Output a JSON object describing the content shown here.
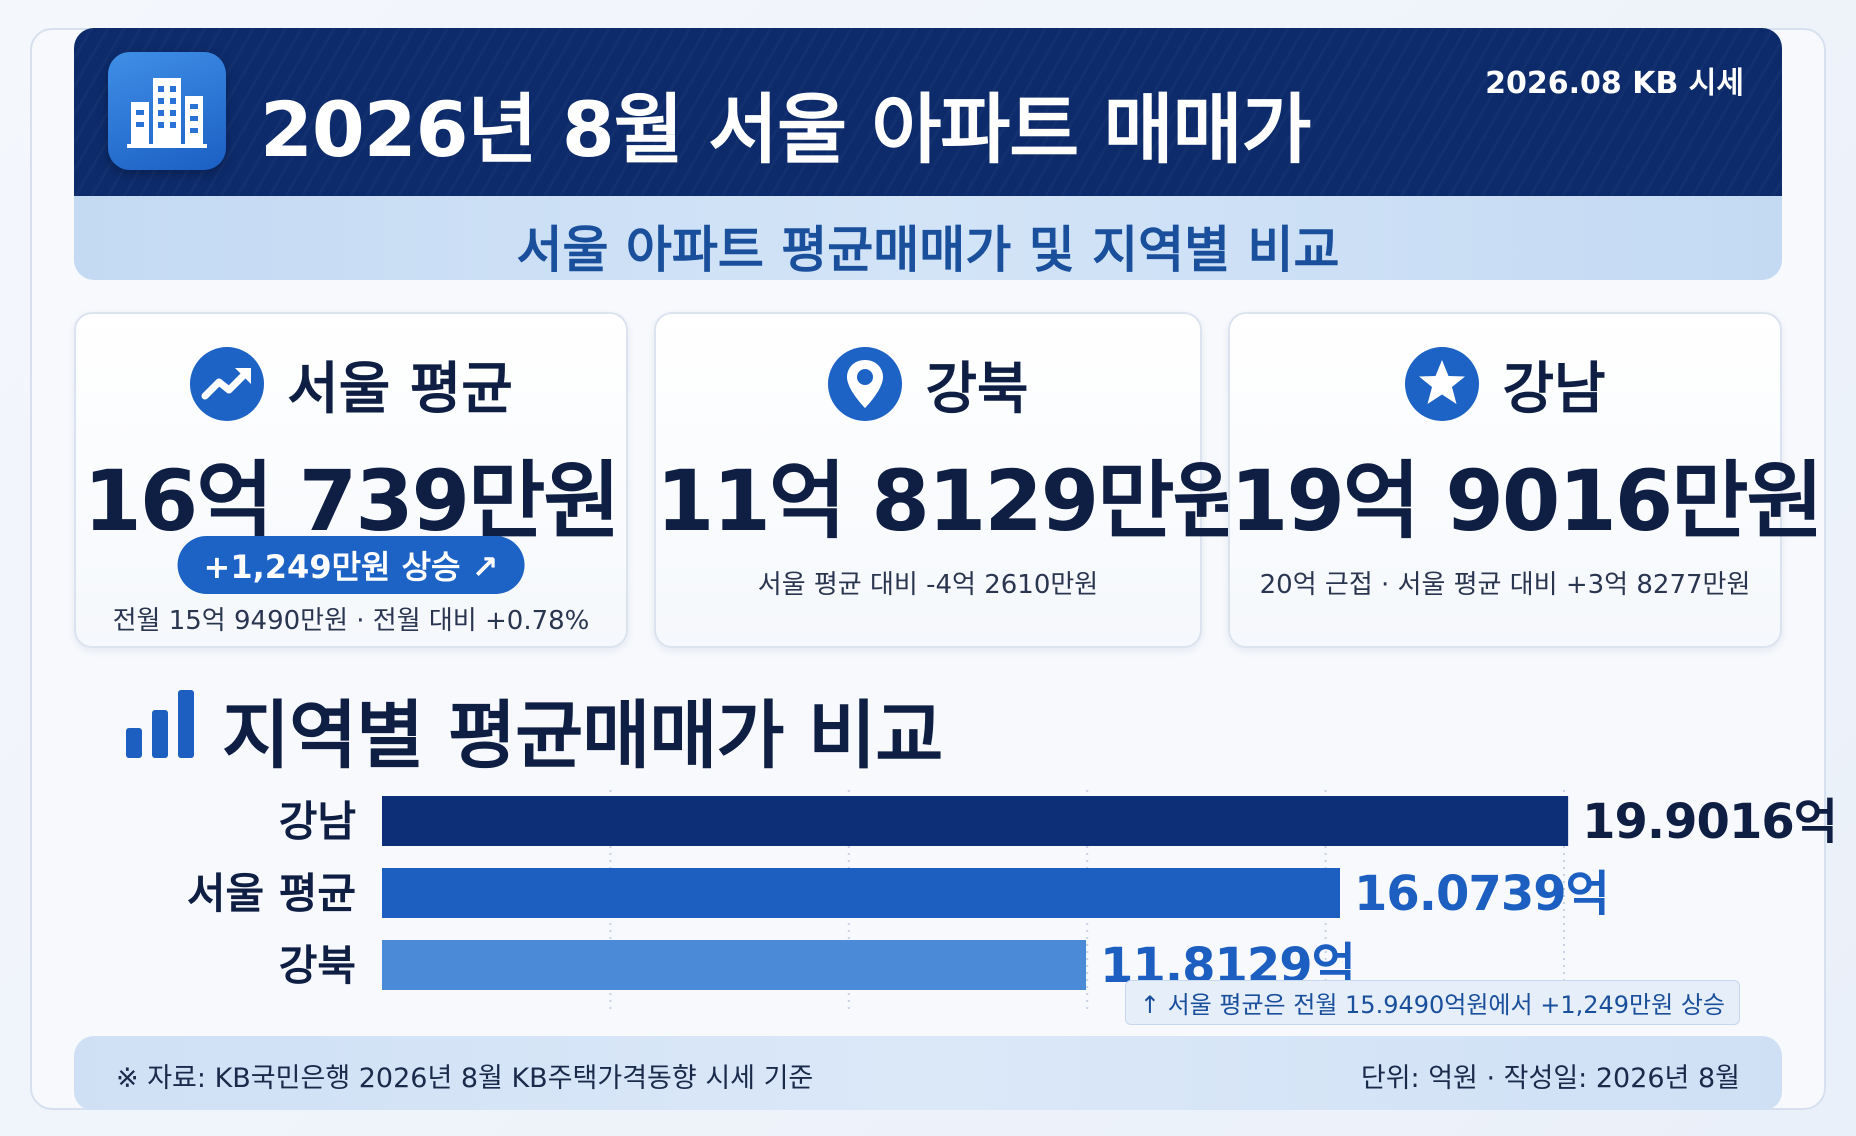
{
  "header": {
    "title": "2026년 8월 서울 아파트 매매가",
    "source_tag": "2026.08 KB 시세",
    "subtitle": "서울 아파트 평균매매가 및 지역별 비교",
    "logo_icon": "building-icon"
  },
  "cards": [
    {
      "icon": "trend-up-icon",
      "label": "서울 평균",
      "value": "16억 739만원",
      "badge": "+1,249만원 상승 ↗",
      "note": "전월 15억 9490만원 · 전월 대비 +0.78%"
    },
    {
      "icon": "location-pin-icon",
      "label": "강북",
      "value": "11억 8129만원",
      "note": "서울 평균 대비 -4억 2610만원"
    },
    {
      "icon": "star-icon",
      "label": "강남",
      "value": "19억 9016만원",
      "note": "20억 근접 · 서울 평균 대비 +3억 8277만원"
    }
  ],
  "chart_section": {
    "title": "지역별 평균매매가 비교",
    "icon": "bar-chart-icon",
    "note": "↑ 서울 평균은 전월 15.9490억원에서 +1,249만원 상승"
  },
  "chart_data": {
    "type": "bar",
    "orientation": "horizontal",
    "title": "지역별 평균매매가 비교",
    "categories": [
      "강남",
      "서울 평균",
      "강북"
    ],
    "values": [
      19.9016,
      16.0739,
      11.8129
    ],
    "value_labels": [
      "19.9016억",
      "16.0739억",
      "11.8129억"
    ],
    "unit": "억원",
    "xlim": [
      0,
      20
    ],
    "grid": true,
    "colors": [
      "#0d2f78",
      "#1d5fc0",
      "#4a8ad6"
    ],
    "label_colors": [
      "#0f1f44",
      "#1d5fc0",
      "#1d5fc0"
    ]
  },
  "footer": {
    "source": "※ 자료: KB국민은행 2026년 8월 KB주택가격동향 시세 기준",
    "meta": "단위: 억원 · 작성일: 2026년 8월"
  },
  "colors": {
    "header_bg": "#0d2b6b",
    "accent": "#1d63c6",
    "text_dark": "#0f1f44"
  }
}
